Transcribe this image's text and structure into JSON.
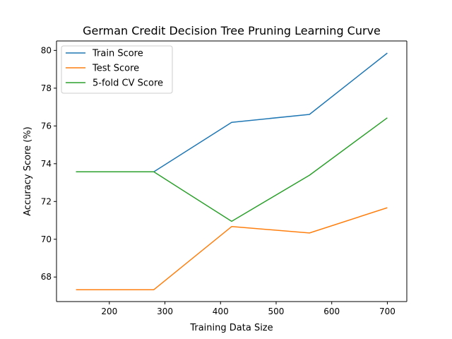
{
  "chart_data": {
    "type": "line",
    "title": "German Credit Decision Tree Pruning Learning Curve",
    "xlabel": "Training Data Size",
    "ylabel": "Accuracy Score (%)",
    "xlim": [
      105,
      735
    ],
    "ylim": [
      66.7,
      80.5
    ],
    "x_ticks": [
      200,
      300,
      400,
      500,
      600,
      700
    ],
    "y_ticks": [
      68,
      70,
      72,
      74,
      76,
      78,
      80
    ],
    "grid": false,
    "legend_position": "upper-left",
    "x": [
      140,
      280,
      420,
      560,
      700
    ],
    "series": [
      {
        "name": "Train Score",
        "color": "#1f77b4",
        "values": [
          73.57,
          73.57,
          76.19,
          76.61,
          79.86
        ]
      },
      {
        "name": "Test Score",
        "color": "#ff7f0e",
        "values": [
          67.33,
          67.33,
          70.67,
          70.33,
          71.67
        ]
      },
      {
        "name": "5-fold CV Score",
        "color": "#2ca02c",
        "values": [
          73.57,
          73.57,
          70.95,
          73.39,
          76.43
        ]
      }
    ]
  }
}
